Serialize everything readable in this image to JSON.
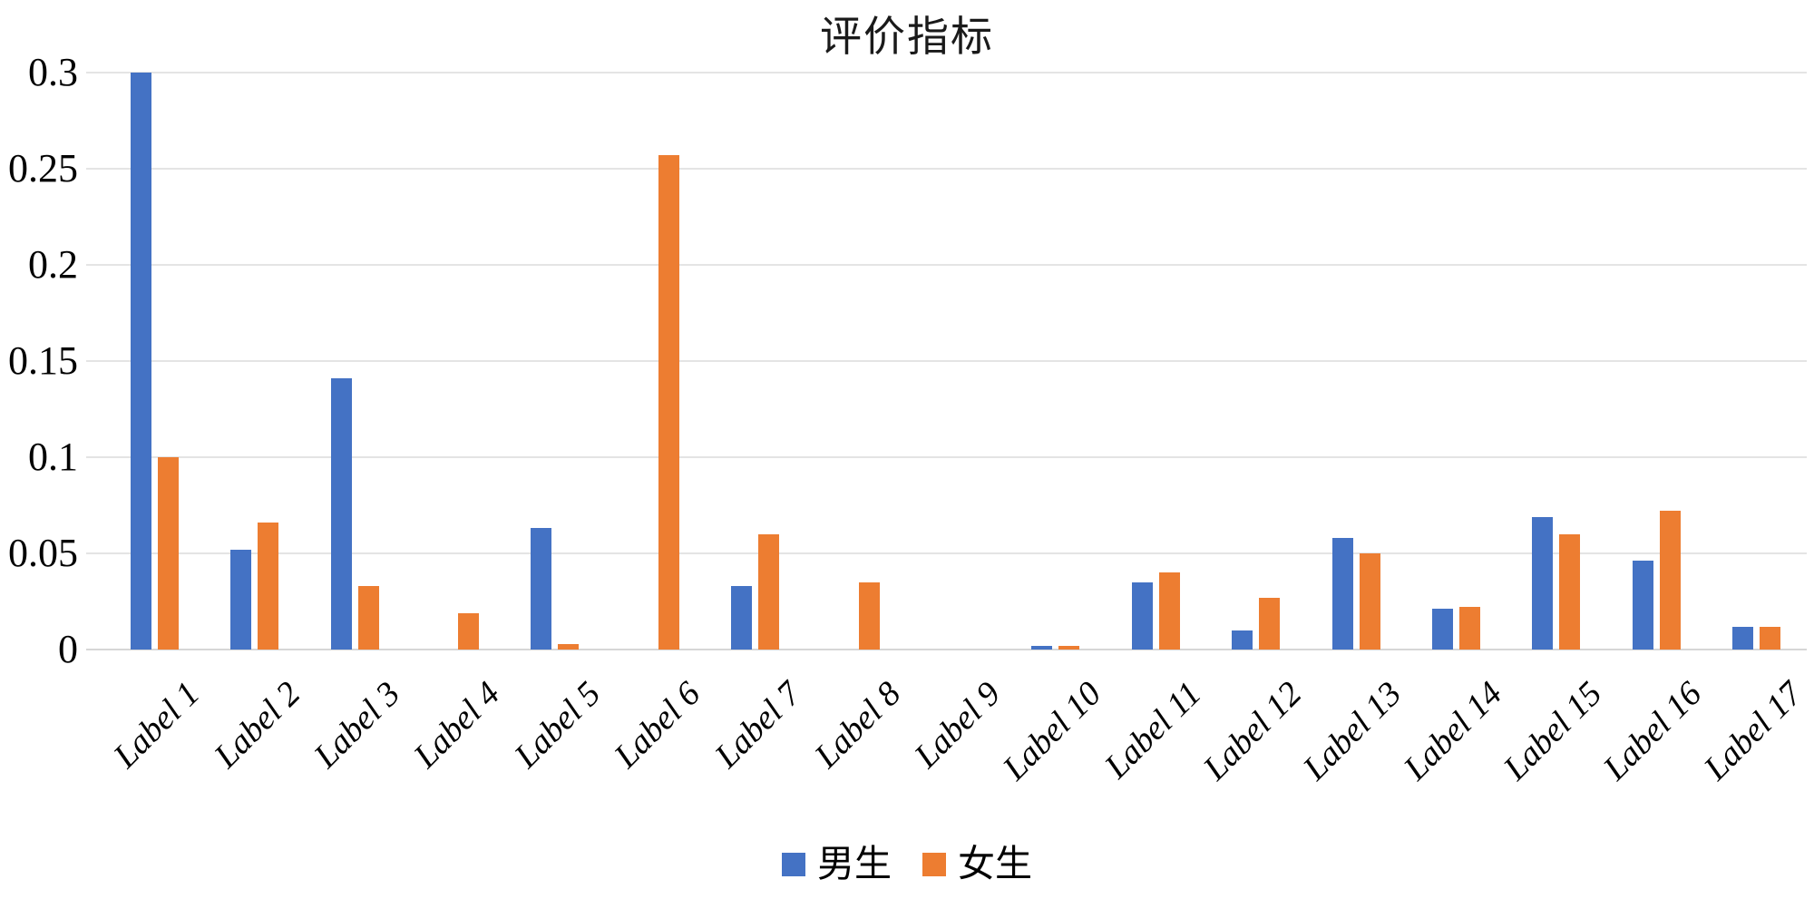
{
  "chart_data": {
    "type": "bar",
    "title": "评价指标",
    "categories": [
      "Label 1",
      "Label 2",
      "Label 3",
      "Label 4",
      "Label 5",
      "Label 6",
      "Label 7",
      "Label 8",
      "Label 9",
      "Label 10",
      "Label 11",
      "Label 12",
      "Label 13",
      "Label 14",
      "Label 15",
      "Label 16",
      "Label 17"
    ],
    "series": [
      {
        "name": "男生",
        "color": "#4472C4",
        "values": [
          0.3,
          0.052,
          0.141,
          0,
          0.063,
          0,
          0.033,
          0,
          0,
          0.002,
          0.035,
          0.01,
          0.058,
          0.021,
          0.069,
          0.046,
          0.012
        ]
      },
      {
        "name": "女生",
        "color": "#ED7D31",
        "values": [
          0.1,
          0.066,
          0.033,
          0.019,
          0.003,
          0.257,
          0.06,
          0.035,
          0,
          0.002,
          0.04,
          0.027,
          0.05,
          0.022,
          0.06,
          0.072,
          0.012
        ]
      }
    ],
    "xlabel": "",
    "ylabel": "",
    "ylim": [
      0,
      0.3
    ],
    "y_tick_labels": [
      "0",
      "0.05",
      "0.1",
      "0.15",
      "0.2",
      "0.25",
      "0.3"
    ],
    "grid": "horizontal",
    "legend_position": "bottom",
    "x_labels_rotation_deg": -45
  },
  "colors": {
    "male_bar": "#4472C4",
    "female_bar": "#ED7D31",
    "gridline": "#E4E4E4",
    "baseline": "#D6D6D6",
    "text": "#000000",
    "background": "#FFFFFF"
  }
}
